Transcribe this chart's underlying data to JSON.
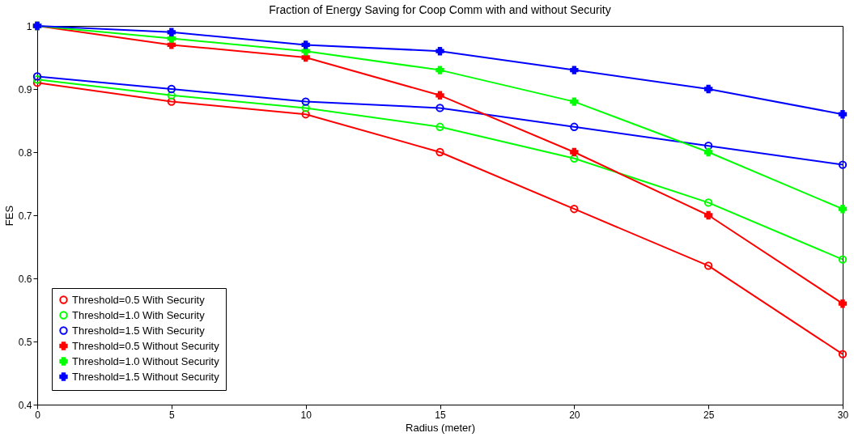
{
  "chart_data": {
    "type": "line",
    "title": "Fraction of Energy Saving for Coop Comm with and without Security",
    "xlabel": "Radius (meter)",
    "ylabel": "FES",
    "x": [
      0,
      5,
      10,
      15,
      20,
      25,
      30
    ],
    "series": [
      {
        "name": "Threshold=0.5 With Security",
        "color": "#ff0000",
        "marker": "circle",
        "values": [
          0.91,
          0.88,
          0.86,
          0.8,
          0.71,
          0.62,
          0.48
        ]
      },
      {
        "name": "Threshold=1.0 With Security",
        "color": "#00ff00",
        "marker": "circle",
        "values": [
          0.915,
          0.89,
          0.87,
          0.84,
          0.79,
          0.72,
          0.63
        ]
      },
      {
        "name": "Threshold=1.5 With Security",
        "color": "#0000ff",
        "marker": "circle",
        "values": [
          0.92,
          0.9,
          0.88,
          0.87,
          0.84,
          0.81,
          0.78
        ]
      },
      {
        "name": "Threshold=0.5 Without Security",
        "color": "#ff0000",
        "marker": "cross",
        "values": [
          1.0,
          0.97,
          0.95,
          0.89,
          0.8,
          0.7,
          0.56
        ]
      },
      {
        "name": "Threshold=1.0 Without Security",
        "color": "#00ff00",
        "marker": "cross",
        "values": [
          1.0,
          0.98,
          0.96,
          0.93,
          0.88,
          0.8,
          0.71
        ]
      },
      {
        "name": "Threshold=1.5 Without Security",
        "color": "#0000ff",
        "marker": "cross",
        "values": [
          1.0,
          0.99,
          0.97,
          0.96,
          0.93,
          0.9,
          0.86
        ]
      }
    ],
    "xlim": [
      0,
      30
    ],
    "xticks": [
      0,
      5,
      10,
      15,
      20,
      25,
      30
    ],
    "ylim": [
      0.4,
      1
    ],
    "yticks": [
      0.4,
      0.5,
      0.6,
      0.7,
      0.8,
      0.9,
      1
    ],
    "grid": false,
    "legend": "bottom left",
    "line_style": "solid"
  }
}
